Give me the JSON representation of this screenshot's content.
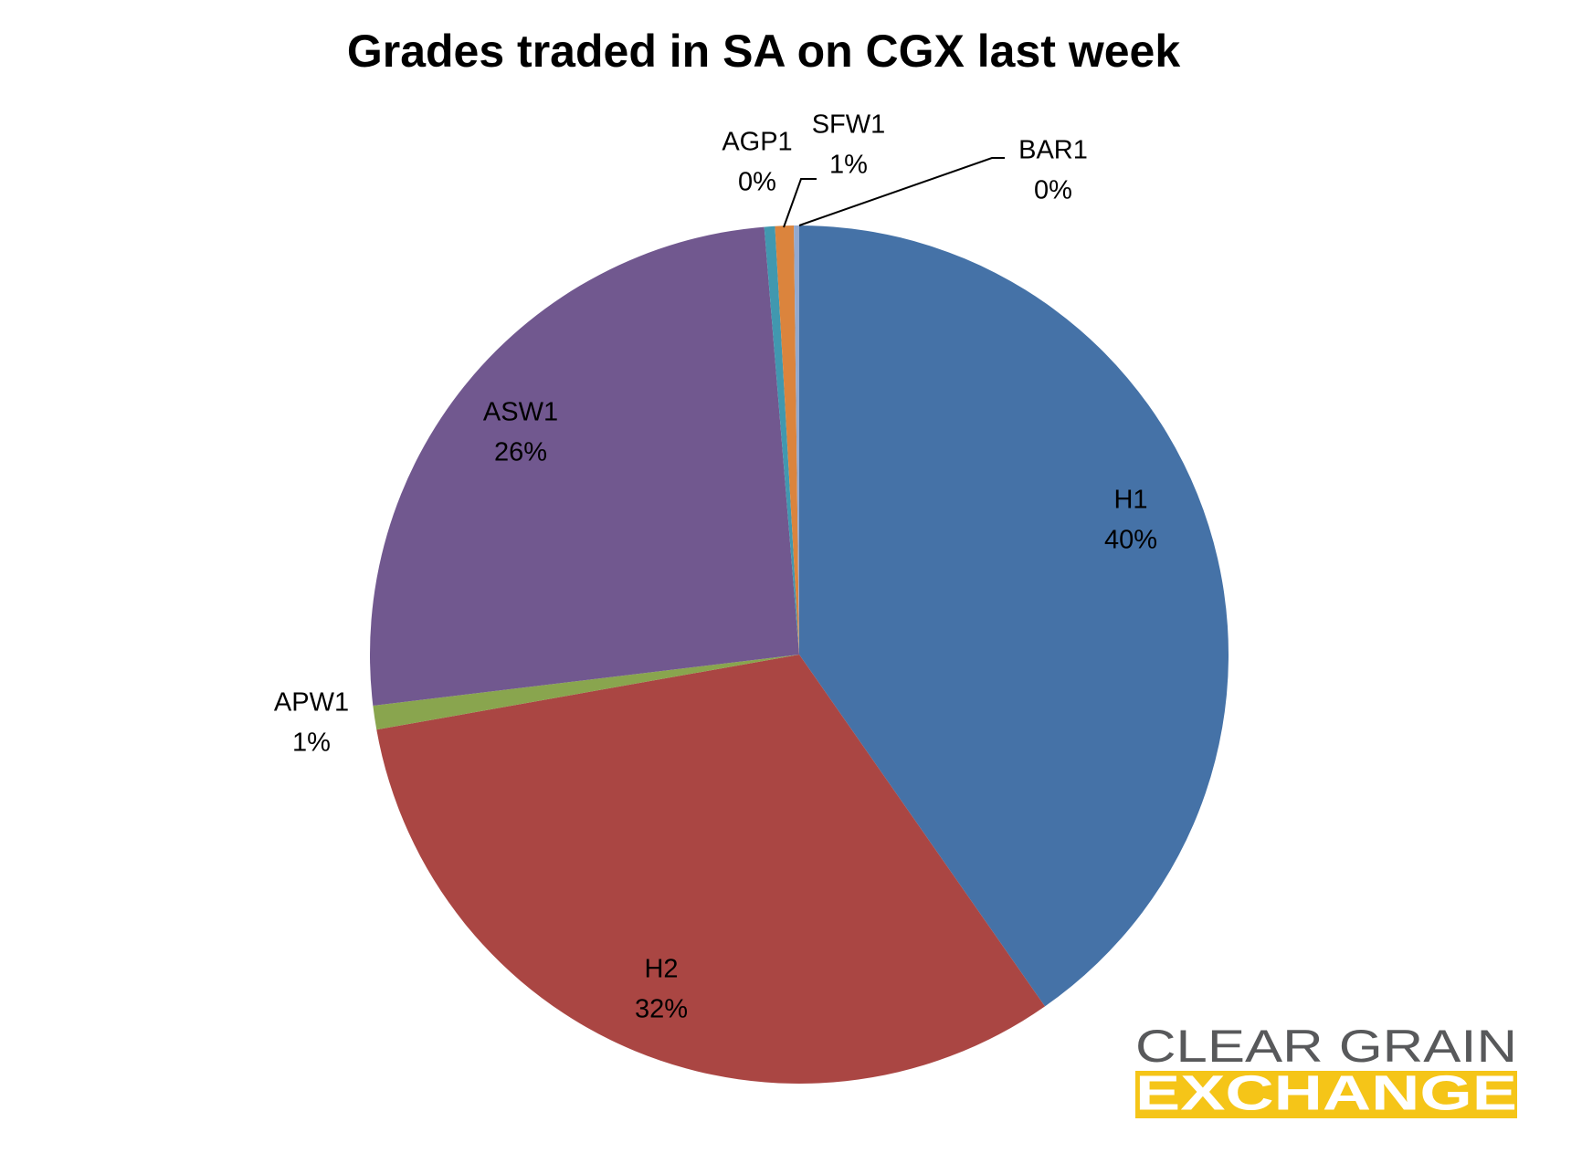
{
  "chart_data": {
    "type": "pie",
    "title": "Grades traded in SA on CGX last week",
    "categories": [
      "H1",
      "H2",
      "APW1",
      "ASW1",
      "AGP1",
      "SFW1",
      "BAR1"
    ],
    "values": [
      40.3,
      31.9,
      0.9,
      25.6,
      0.4,
      0.7,
      0.2
    ],
    "value_labels": [
      "40%",
      "32%",
      "1%",
      "26%",
      "0%",
      "1%",
      "0%"
    ],
    "colors": [
      "#4572a7",
      "#aa4643",
      "#89a54e",
      "#71588f",
      "#4198af",
      "#db843d",
      "#93a9cf"
    ]
  },
  "logo": {
    "line1": "CLEAR GRAIN",
    "line2": "EXCHANGE"
  }
}
